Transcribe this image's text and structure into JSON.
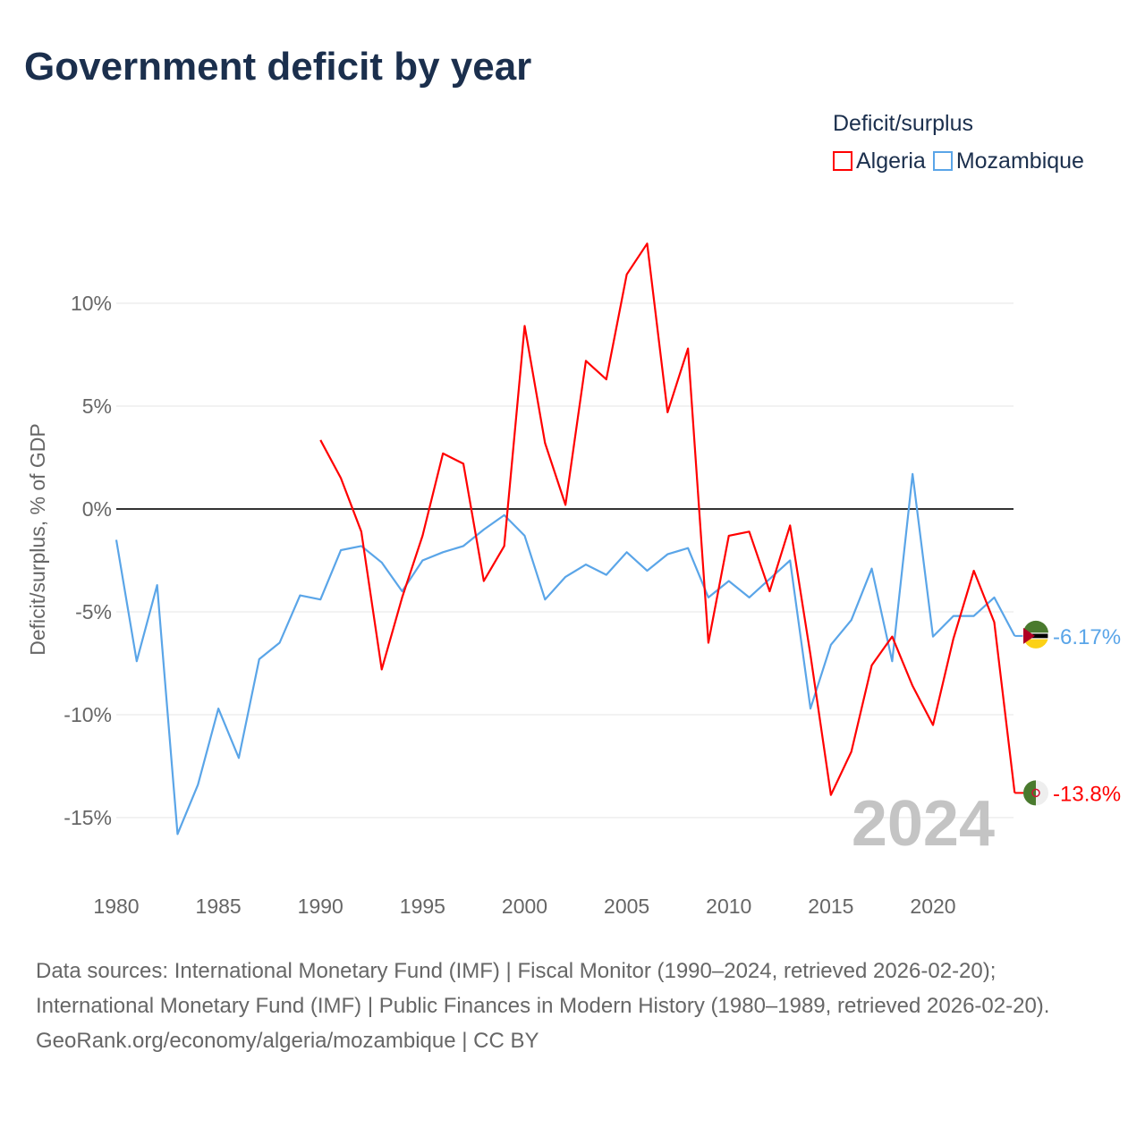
{
  "title": "Government deficit by year",
  "legend": {
    "title": "Deficit/surplus",
    "items": [
      {
        "name": "Algeria",
        "color": "#ff0000"
      },
      {
        "name": "Mozambique",
        "color": "#5aa5e8"
      }
    ]
  },
  "footer": {
    "line1": "Data sources: International Monetary Fund (IMF) | Fiscal Monitor (1990–2024, retrieved 2026-02-20); International Monetary Fund (IMF) | Public Finances in Modern History (1980–1989, retrieved 2026-02-20).",
    "line2": "GeoRank.org/economy/algeria/mozambique | CC BY"
  },
  "chart_data": {
    "type": "line",
    "title": "Government deficit by year",
    "ylabel": "Deficit/surplus, % of GDP",
    "xlabel": "",
    "year_watermark": "2024",
    "xlim": [
      1980,
      2024
    ],
    "ylim": [
      -18,
      15
    ],
    "xticks": [
      1980,
      1985,
      1990,
      1995,
      2000,
      2005,
      2010,
      2015,
      2020
    ],
    "yticks": [
      {
        "v": 10,
        "label": "10%"
      },
      {
        "v": 5,
        "label": "5%"
      },
      {
        "v": 0,
        "label": "0%"
      },
      {
        "v": -5,
        "label": "-5%"
      },
      {
        "v": -10,
        "label": "-10%"
      },
      {
        "v": -15,
        "label": "-15%"
      }
    ],
    "series": [
      {
        "name": "Algeria",
        "color": "#ff0000",
        "end_label": "-13.8%",
        "start": 1990,
        "values": [
          3.35,
          1.5,
          -1.1,
          -7.8,
          -4.3,
          -1.3,
          2.7,
          2.2,
          -3.5,
          -1.8,
          8.9,
          3.2,
          0.2,
          7.2,
          6.3,
          11.4,
          12.9,
          4.7,
          7.8,
          -6.5,
          -1.3,
          -1.1,
          -4.0,
          -0.8,
          -7.1,
          -13.9,
          -11.8,
          -7.6,
          -6.2,
          -8.6,
          -10.5,
          -6.3,
          -3.0,
          -5.5,
          -13.8
        ]
      },
      {
        "name": "Mozambique",
        "color": "#5aa5e8",
        "end_label": "-6.17%",
        "start": 1980,
        "values": [
          -1.5,
          -7.4,
          -3.7,
          -15.8,
          -13.4,
          -9.7,
          -12.1,
          -7.3,
          -6.5,
          -4.2,
          -4.4,
          -2.0,
          -1.8,
          -2.6,
          -4.0,
          -2.5,
          -2.1,
          -1.8,
          -1.0,
          -0.3,
          -1.3,
          -4.4,
          -3.3,
          -2.7,
          -3.2,
          -2.1,
          -3.0,
          -2.2,
          -1.9,
          -4.3,
          -3.5,
          -4.3,
          -3.4,
          -2.5,
          -9.7,
          -6.6,
          -5.4,
          -2.9,
          -7.4,
          1.7,
          -6.2,
          -5.2,
          -5.2,
          -4.3,
          -6.17
        ]
      }
    ]
  }
}
